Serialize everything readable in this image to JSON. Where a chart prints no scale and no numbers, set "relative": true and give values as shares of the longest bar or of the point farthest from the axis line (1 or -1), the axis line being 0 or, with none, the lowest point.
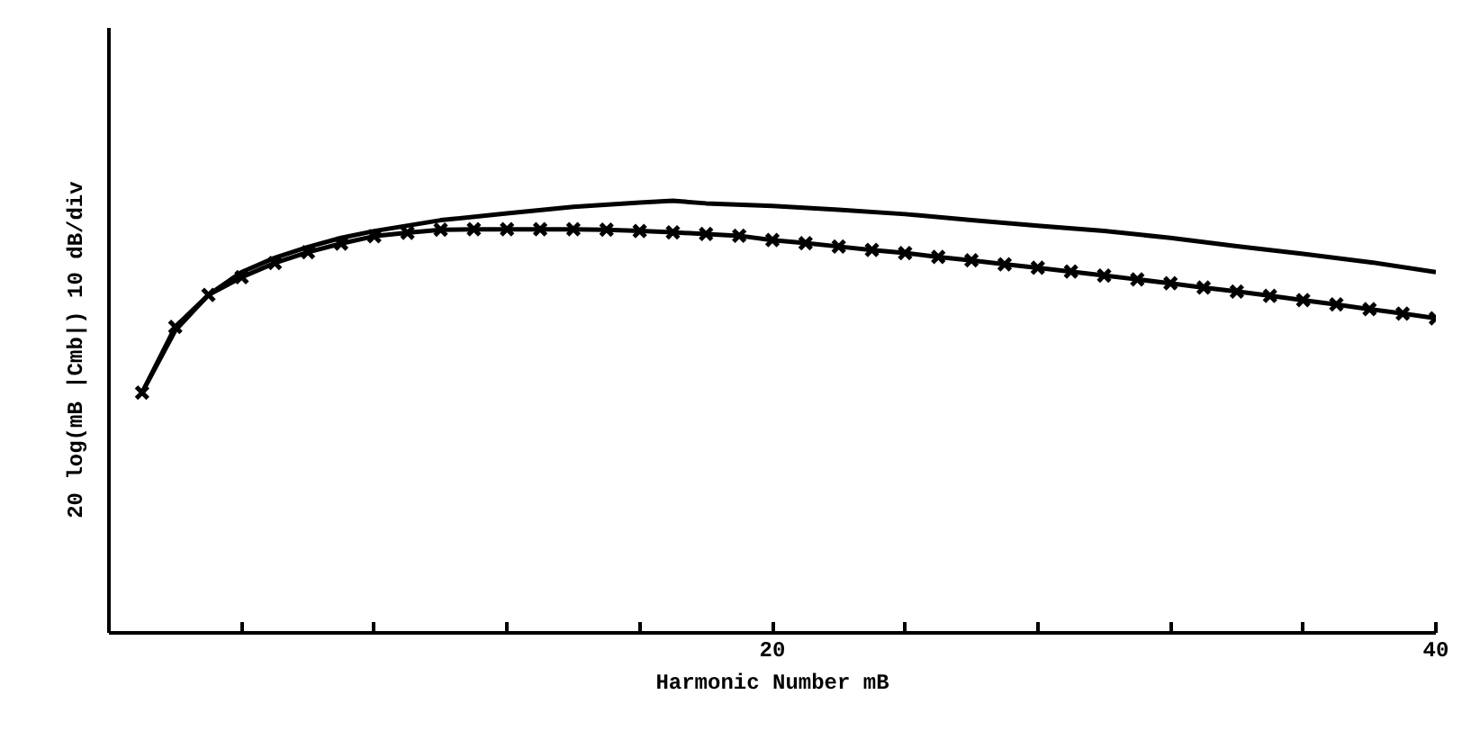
{
  "chart_data": {
    "type": "line",
    "relative": true,
    "xlabel": "Harmonic Number mB",
    "ylabel": "20 log(mB |Cmb|)    10 dB/div",
    "xlim": [
      0,
      40
    ],
    "xticks": [
      {
        "value": 4,
        "label": null
      },
      {
        "value": 8,
        "label": null
      },
      {
        "value": 12,
        "label": null
      },
      {
        "value": 16,
        "label": null
      },
      20,
      {
        "value": 24,
        "label": null
      },
      {
        "value": 28,
        "label": null
      },
      {
        "value": 32,
        "label": null
      },
      {
        "value": 36,
        "label": null
      },
      40
    ],
    "grid": false,
    "line_style": "solid",
    "series": [
      {
        "color": "#000000",
        "marker": "none",
        "x": [
          1,
          2,
          3,
          4,
          5,
          6,
          7,
          8,
          10,
          12,
          14,
          16,
          17,
          18,
          20,
          22,
          24,
          26,
          28,
          30,
          32,
          34,
          36,
          38,
          40
        ],
        "values": [
          0.556,
          0.7,
          0.782,
          0.835,
          0.868,
          0.893,
          0.914,
          0.93,
          0.955,
          0.971,
          0.986,
          0.996,
          1.0,
          0.994,
          0.988,
          0.979,
          0.969,
          0.955,
          0.942,
          0.93,
          0.914,
          0.895,
          0.877,
          0.858,
          0.835
        ]
      },
      {
        "color": "#000000",
        "marker": "cross",
        "x": [
          1,
          2,
          3,
          4,
          5,
          6,
          7,
          8,
          9,
          10,
          11,
          12,
          13,
          14,
          15,
          16,
          17,
          18,
          19,
          20,
          21,
          22,
          23,
          24,
          25,
          26,
          27,
          28,
          29,
          30,
          31,
          32,
          33,
          34,
          35,
          36,
          37,
          38,
          39,
          40
        ],
        "values": [
          0.556,
          0.708,
          0.782,
          0.823,
          0.856,
          0.881,
          0.901,
          0.918,
          0.926,
          0.933,
          0.934,
          0.934,
          0.934,
          0.934,
          0.933,
          0.93,
          0.927,
          0.923,
          0.919,
          0.909,
          0.902,
          0.894,
          0.886,
          0.879,
          0.87,
          0.862,
          0.853,
          0.845,
          0.836,
          0.827,
          0.818,
          0.809,
          0.799,
          0.79,
          0.78,
          0.77,
          0.76,
          0.749,
          0.739,
          0.728
        ]
      }
    ]
  }
}
